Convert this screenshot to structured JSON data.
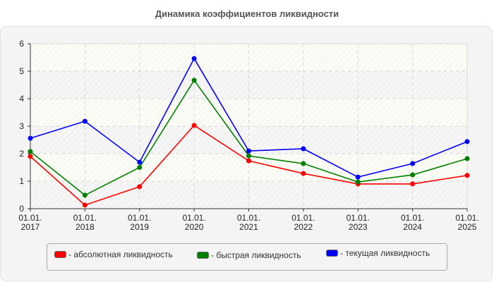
{
  "title": "Динамика коэффициентов ликвидности",
  "chart_data": {
    "type": "line",
    "title": "Динамика коэффициентов ликвидности",
    "xlabel": "",
    "ylabel": "",
    "ylim": [
      0,
      6
    ],
    "yticks": [
      "0",
      "1",
      "2",
      "3",
      "4",
      "5",
      "6"
    ],
    "categories": [
      "01.01.2017",
      "01.01.2018",
      "01.01.2019",
      "01.01.2020",
      "01.01.2021",
      "01.01.2022",
      "01.01.2023",
      "01.01.2024",
      "01.01.2025"
    ],
    "tick_labels": [
      [
        "01.01.",
        "2017"
      ],
      [
        "01.01.",
        "2018"
      ],
      [
        "01.01.",
        "2019"
      ],
      [
        "01.01.",
        "2020"
      ],
      [
        "01.01.",
        "2021"
      ],
      [
        "01.01.",
        "2022"
      ],
      [
        "01.01.",
        "2023"
      ],
      [
        "01.01.",
        "2024"
      ],
      [
        "01.01.",
        "2025"
      ]
    ],
    "grid": true,
    "legend_position": "bottom",
    "series": [
      {
        "name": "абсолютная ликвидность",
        "color": "#ff0000",
        "values": [
          1.9,
          0.13,
          0.8,
          3.03,
          1.74,
          1.28,
          0.9,
          0.9,
          1.21
        ]
      },
      {
        "name": "быстрая ликвидность",
        "color": "#008000",
        "values": [
          2.08,
          0.49,
          1.5,
          4.67,
          1.92,
          1.64,
          0.97,
          1.23,
          1.82
        ]
      },
      {
        "name": "текущая ликвидность",
        "color": "#0000ff",
        "values": [
          2.56,
          3.18,
          1.69,
          5.46,
          2.1,
          2.18,
          1.15,
          1.64,
          2.44
        ]
      }
    ]
  },
  "legend": [
    {
      "label": "- абсолютная ликвидность",
      "color": "#ff0000"
    },
    {
      "label": "- быстрая ликвидность",
      "color": "#008000"
    },
    {
      "label": "- текущая ликвидность",
      "color": "#0000ff"
    }
  ]
}
